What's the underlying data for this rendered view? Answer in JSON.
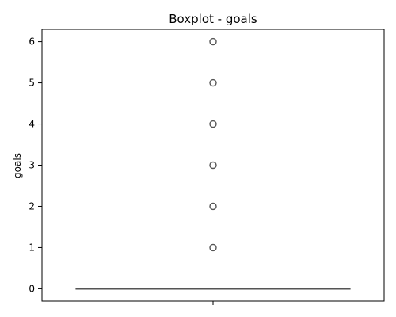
{
  "chart_data": {
    "type": "boxplot",
    "title": "Boxplot - goals",
    "xlabel": "",
    "ylabel": "goals",
    "ylim": [
      -0.3,
      6.3
    ],
    "yticks": [
      "0",
      "1",
      "2",
      "3",
      "4",
      "5",
      "6"
    ],
    "grid": false,
    "box": {
      "min": 0,
      "q1": 0,
      "median": 0,
      "q3": 0,
      "max": 0
    },
    "outliers": [
      1,
      2,
      3,
      4,
      5,
      6
    ],
    "colors": {
      "box_line": "#555555",
      "axis": "#000000",
      "outlier_edge": "#555555"
    }
  }
}
